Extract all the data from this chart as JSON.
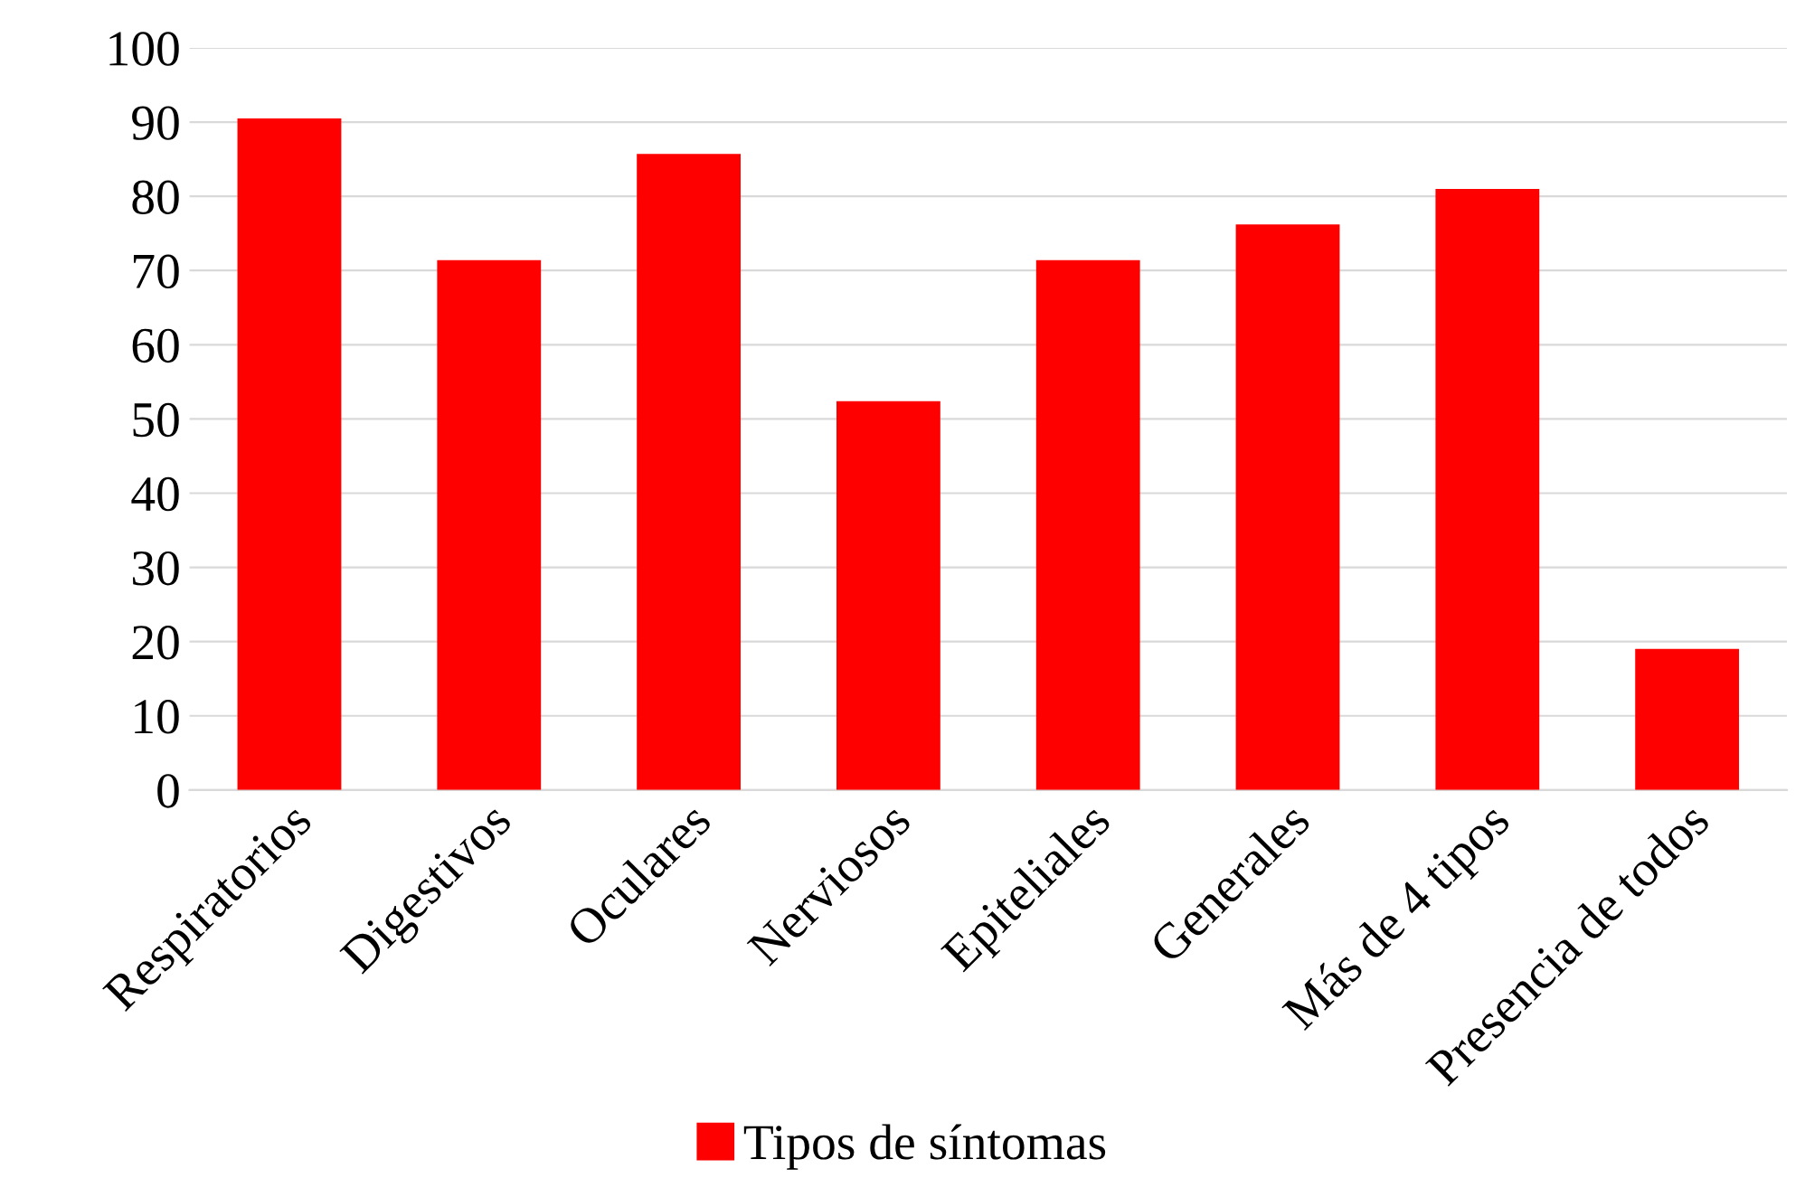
{
  "chart_data": {
    "type": "bar",
    "categories": [
      "Respiratorios",
      "Digestivos",
      "Oculares",
      "Nerviosos",
      "Epiteliales",
      "Generales",
      "Más de 4 tipos",
      "Presencia de todos"
    ],
    "series": [
      {
        "name": "Tipos de síntomas",
        "color": "#ff0000",
        "values": [
          90.5,
          71.4,
          85.7,
          52.4,
          71.4,
          76.2,
          81.0,
          19.0
        ]
      }
    ],
    "ylim": [
      0,
      100
    ],
    "yticks": [
      0,
      10,
      20,
      30,
      40,
      50,
      60,
      70,
      80,
      90,
      100
    ],
    "grid": "y",
    "legend": "bottom"
  }
}
